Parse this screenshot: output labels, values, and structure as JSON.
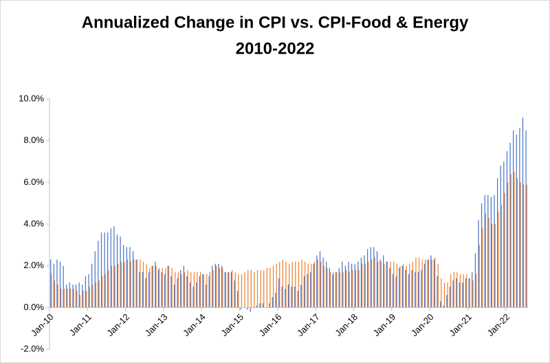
{
  "chart_data": {
    "type": "bar",
    "title": "Annualized Change in CPI vs. CPI-Food & Energy",
    "subtitle": "2010-2022",
    "categories": [
      "Jan-10",
      null,
      null,
      null,
      null,
      null,
      null,
      null,
      null,
      null,
      null,
      null,
      "Jan-11",
      null,
      null,
      null,
      null,
      null,
      null,
      null,
      null,
      null,
      null,
      null,
      "Jan-12",
      null,
      null,
      null,
      null,
      null,
      null,
      null,
      null,
      null,
      null,
      null,
      "Jan-13",
      null,
      null,
      null,
      null,
      null,
      null,
      null,
      null,
      null,
      null,
      null,
      "Jan-14",
      null,
      null,
      null,
      null,
      null,
      null,
      null,
      null,
      null,
      null,
      null,
      "Jan-15",
      null,
      null,
      null,
      null,
      null,
      null,
      null,
      null,
      null,
      null,
      null,
      "Jan-16",
      null,
      null,
      null,
      null,
      null,
      null,
      null,
      null,
      null,
      null,
      null,
      "Jan-17",
      null,
      null,
      null,
      null,
      null,
      null,
      null,
      null,
      null,
      null,
      null,
      "Jan-18",
      null,
      null,
      null,
      null,
      null,
      null,
      null,
      null,
      null,
      null,
      null,
      "Jan-19",
      null,
      null,
      null,
      null,
      null,
      null,
      null,
      null,
      null,
      null,
      null,
      "Jan-20",
      null,
      null,
      null,
      null,
      null,
      null,
      null,
      null,
      null,
      null,
      null,
      "Jan-21",
      null,
      null,
      null,
      null,
      null,
      null,
      null,
      null,
      null,
      null,
      null,
      "Jan-22",
      null,
      null,
      null,
      null,
      null,
      null
    ],
    "series": [
      {
        "color": "#4472c4",
        "values": [
          2.3,
          2.1,
          2.3,
          2.2,
          2.0,
          1.1,
          1.2,
          1.1,
          1.1,
          1.2,
          1.1,
          1.5,
          1.6,
          2.1,
          2.7,
          3.2,
          3.6,
          3.6,
          3.6,
          3.8,
          3.9,
          3.5,
          3.4,
          3.0,
          2.9,
          2.9,
          2.7,
          2.3,
          1.7,
          1.7,
          1.4,
          1.7,
          2.0,
          2.2,
          1.8,
          1.7,
          1.6,
          2.0,
          1.5,
          1.1,
          1.4,
          1.8,
          2.0,
          1.5,
          1.2,
          1.0,
          1.2,
          1.5,
          1.6,
          1.1,
          1.5,
          2.0,
          2.1,
          2.1,
          2.0,
          1.7,
          1.7,
          1.7,
          1.3,
          0.8,
          -0.1,
          0.0,
          -0.1,
          -0.2,
          0.0,
          0.1,
          0.2,
          0.2,
          0.0,
          0.2,
          0.5,
          0.7,
          1.4,
          1.0,
          0.9,
          1.1,
          1.0,
          1.0,
          0.8,
          1.1,
          1.5,
          1.6,
          1.7,
          2.1,
          2.5,
          2.7,
          2.4,
          2.2,
          1.9,
          1.6,
          1.7,
          1.9,
          2.2,
          2.0,
          2.2,
          2.1,
          2.1,
          2.2,
          2.4,
          2.5,
          2.8,
          2.9,
          2.9,
          2.7,
          2.3,
          2.5,
          2.2,
          1.9,
          1.6,
          1.5,
          1.9,
          2.0,
          1.8,
          1.6,
          1.8,
          1.7,
          1.7,
          1.8,
          2.1,
          2.3,
          2.5,
          2.3,
          1.5,
          0.3,
          0.1,
          0.6,
          1.0,
          1.3,
          1.4,
          1.2,
          1.2,
          1.4,
          1.4,
          1.7,
          2.6,
          4.2,
          5.0,
          5.4,
          5.4,
          5.3,
          5.4,
          6.2,
          6.8,
          7.0,
          7.5,
          7.9,
          8.5,
          8.3,
          8.6,
          9.1,
          8.5
        ]
      },
      {
        "color": "#ed7d31",
        "values": [
          1.6,
          1.3,
          1.1,
          0.9,
          0.9,
          0.9,
          0.9,
          0.9,
          0.8,
          0.6,
          0.8,
          0.8,
          1.0,
          1.1,
          1.2,
          1.3,
          1.5,
          1.6,
          1.8,
          2.0,
          2.0,
          2.1,
          2.2,
          2.2,
          2.3,
          2.2,
          2.3,
          2.3,
          2.3,
          2.2,
          2.1,
          1.9,
          2.0,
          2.0,
          1.9,
          1.9,
          1.9,
          2.0,
          1.9,
          1.7,
          1.7,
          1.6,
          1.7,
          1.8,
          1.7,
          1.7,
          1.7,
          1.7,
          1.6,
          1.6,
          1.7,
          1.8,
          2.0,
          1.9,
          1.9,
          1.7,
          1.7,
          1.8,
          1.7,
          1.6,
          1.6,
          1.7,
          1.8,
          1.8,
          1.7,
          1.8,
          1.8,
          1.8,
          1.9,
          1.9,
          2.0,
          2.1,
          2.2,
          2.3,
          2.2,
          2.1,
          2.2,
          2.2,
          2.2,
          2.3,
          2.2,
          2.1,
          2.1,
          2.2,
          2.3,
          2.2,
          2.0,
          1.9,
          1.7,
          1.7,
          1.7,
          1.7,
          1.7,
          1.8,
          1.7,
          1.8,
          1.8,
          1.8,
          2.1,
          2.1,
          2.2,
          2.3,
          2.4,
          2.2,
          2.2,
          2.1,
          2.2,
          2.2,
          2.2,
          2.1,
          2.0,
          2.1,
          2.0,
          2.1,
          2.2,
          2.4,
          2.4,
          2.3,
          2.3,
          2.3,
          2.3,
          2.4,
          2.1,
          1.4,
          1.2,
          1.2,
          1.6,
          1.7,
          1.7,
          1.6,
          1.6,
          1.6,
          1.4,
          1.3,
          1.6,
          3.0,
          3.8,
          4.5,
          4.3,
          4.0,
          4.0,
          4.6,
          4.9,
          5.5,
          6.0,
          6.4,
          6.5,
          6.2,
          6.0,
          5.9,
          5.9
        ]
      }
    ],
    "ylim": [
      -2,
      10
    ],
    "yticks": [
      {
        "value": -2,
        "label": "-2.0%"
      },
      {
        "value": 0,
        "label": "0.0%"
      },
      {
        "value": 2,
        "label": "2.0%"
      },
      {
        "value": 4,
        "label": "4.0%"
      },
      {
        "value": 6,
        "label": "6.0%"
      },
      {
        "value": 8,
        "label": "8.0%"
      },
      {
        "value": 10,
        "label": "10.0%"
      }
    ]
  }
}
